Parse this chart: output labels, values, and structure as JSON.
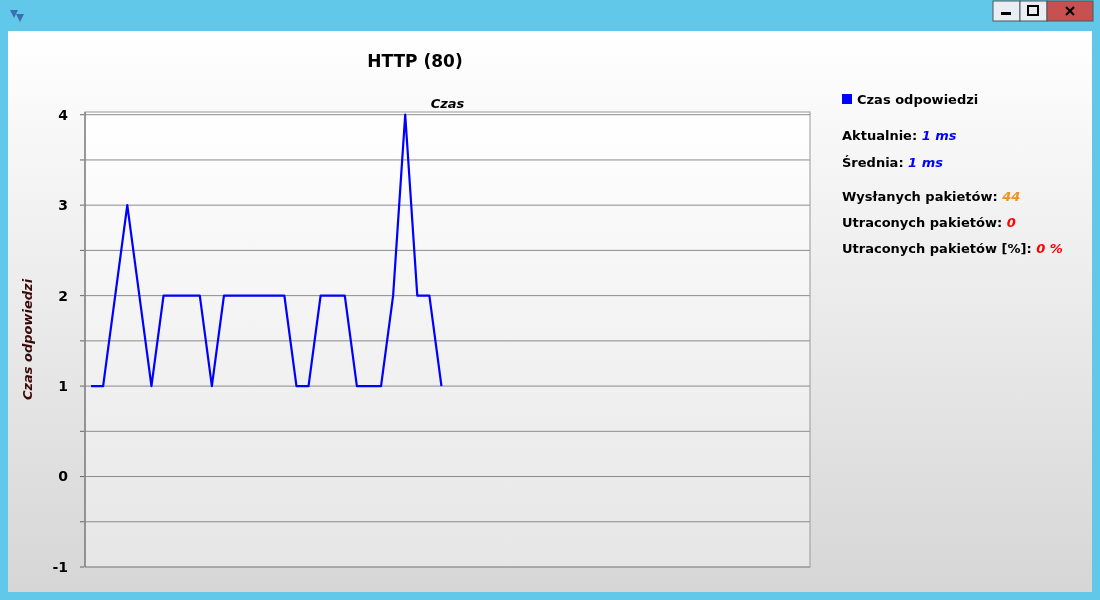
{
  "chart_data": {
    "type": "line",
    "title": "HTTP (80)",
    "xlabel": "Czas",
    "ylabel": "Czas odpowiedzi",
    "categories": [
      null,
      null,
      null,
      null,
      null,
      null,
      null,
      null,
      null,
      null,
      null,
      null,
      null,
      null,
      null,
      null,
      null,
      null,
      null,
      null,
      null,
      null,
      null,
      null,
      null,
      null,
      null,
      null,
      null,
      null,
      null,
      null,
      null,
      null,
      null,
      null,
      null,
      null,
      null,
      null,
      null,
      null,
      null,
      null,
      null,
      null,
      null,
      null,
      null,
      null,
      null,
      null,
      null,
      null,
      null,
      null,
      null,
      null,
      null,
      null
    ],
    "series": [
      {
        "name": "Czas odpowiedzi",
        "color": "#0000ff",
        "values": [
          1,
          1,
          2,
          3,
          2,
          1,
          2,
          2,
          2,
          2,
          1,
          2,
          2,
          2,
          2,
          2,
          2,
          1,
          1,
          2,
          2,
          2,
          1,
          1,
          1,
          2,
          4,
          2,
          2,
          1,
          null,
          null,
          null,
          null,
          null,
          null,
          null,
          null,
          null,
          null,
          null,
          null,
          null,
          null,
          null,
          null,
          null,
          null,
          null,
          null,
          null,
          null,
          null,
          null,
          null,
          null,
          null,
          null,
          null,
          null
        ]
      }
    ],
    "ylim": [
      -1,
      4.03
    ],
    "yticks": [
      -1,
      {
        "value": -0.5,
        "label": null
      },
      0,
      {
        "value": 0.5,
        "label": null
      },
      1,
      {
        "value": 1.5,
        "label": null
      },
      2,
      {
        "value": 2.5,
        "label": null
      },
      3,
      {
        "value": 3.5,
        "label": null
      },
      4
    ],
    "grid": "y",
    "legend": "top right",
    "marker": "none",
    "line_style": "solid",
    "annotations": [
      "Aktualnie: 1 ms",
      "Średnia: 1 ms",
      "Wysłanych pakietów: 44",
      "Utraconych pakietów: 0",
      "Utraconych pakietów [%]: 0 %"
    ]
  }
}
